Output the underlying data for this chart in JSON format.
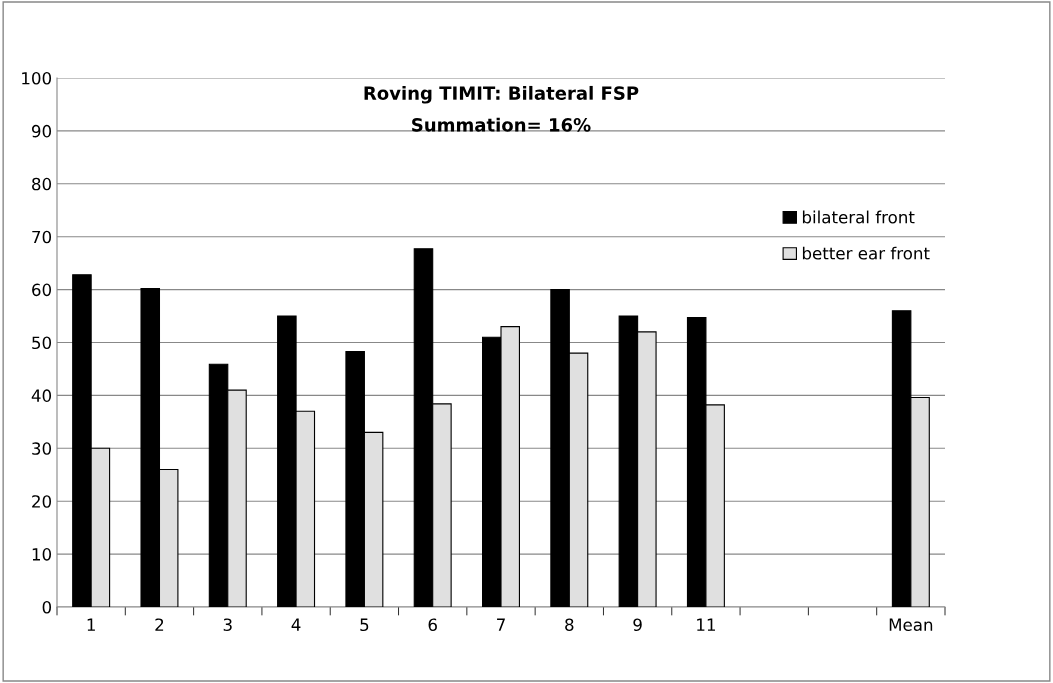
{
  "chart_data": {
    "type": "bar",
    "title": "Roving TIMIT: Bilateral FSP",
    "subtitle": "Summation= 16%",
    "categories": [
      "1",
      "2",
      "3",
      "4",
      "5",
      "6",
      "7",
      "8",
      "9",
      "11",
      null,
      null,
      "Mean"
    ],
    "series": [
      {
        "name": "bilateral front",
        "color": "#000000",
        "values": [
          62.8,
          60.2,
          45.9,
          55,
          48.3,
          67.7,
          51,
          60,
          55,
          54.7,
          null,
          null,
          56
        ]
      },
      {
        "name": "better ear front",
        "color": "#e0e0e0",
        "values": [
          30,
          26,
          41,
          37,
          33,
          38.4,
          53,
          48,
          52,
          38.2,
          null,
          null,
          39.6
        ]
      }
    ],
    "ylim": [
      0,
      100
    ],
    "yticks": [
      0,
      10,
      20,
      30,
      40,
      50,
      60,
      70,
      80,
      90,
      100
    ],
    "grid": "y",
    "legend": "right"
  }
}
